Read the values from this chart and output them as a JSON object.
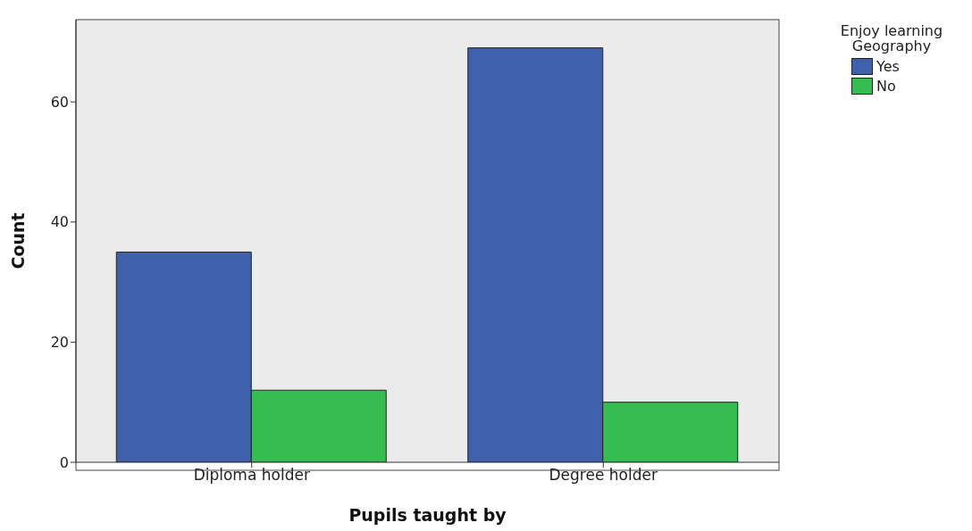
{
  "chart_data": {
    "type": "bar",
    "xlabel": "Pupils taught by",
    "ylabel": "Count",
    "legend_title": "Enjoy learning Geography",
    "categories": [
      "Diploma holder",
      "Degree holder"
    ],
    "series": [
      {
        "name": "Yes",
        "color": "#4060ac",
        "values": [
          35,
          69
        ]
      },
      {
        "name": "No",
        "color": "#36bc50",
        "values": [
          12,
          10
        ]
      }
    ],
    "ylim": [
      0,
      73.7
    ],
    "yticks": [
      0,
      20,
      40,
      60
    ],
    "grid": false,
    "legend": "top right"
  }
}
